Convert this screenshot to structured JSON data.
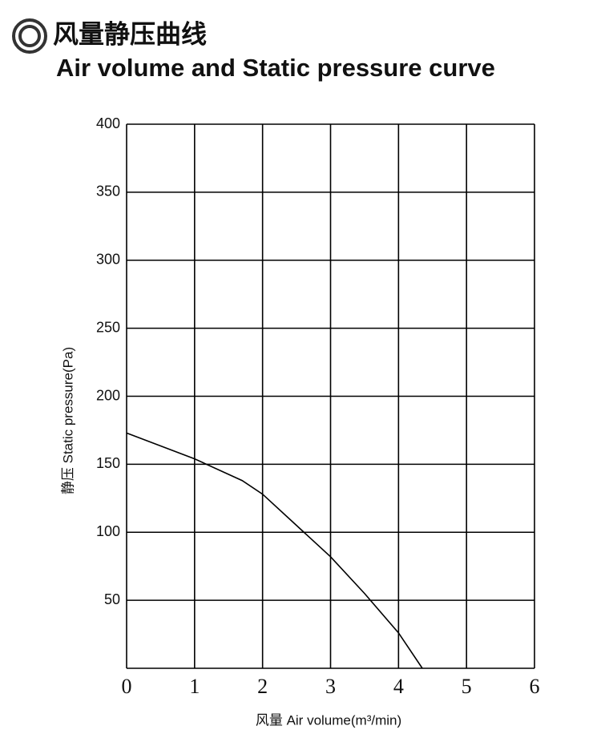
{
  "chart_data": {
    "type": "line",
    "title": "风量静压曲线",
    "subtitle": "Air volume and Static pressure curve",
    "x_label": "风量 Air volume(m³/min)",
    "y_label": "静压 Static pressure(Pa)",
    "x": [
      0,
      1,
      1.7,
      2,
      2.5,
      3,
      3.5,
      4,
      4.35
    ],
    "values": [
      173,
      154,
      138,
      128,
      105,
      82,
      55,
      26,
      0
    ],
    "color": "#000000",
    "xlim": [
      0,
      6
    ],
    "xticks": [
      0,
      1,
      2,
      3,
      4,
      5,
      6
    ],
    "ylim": [
      0,
      400
    ],
    "yticks": [
      50,
      100,
      150,
      200,
      250,
      300,
      350,
      400
    ],
    "grid": true
  }
}
